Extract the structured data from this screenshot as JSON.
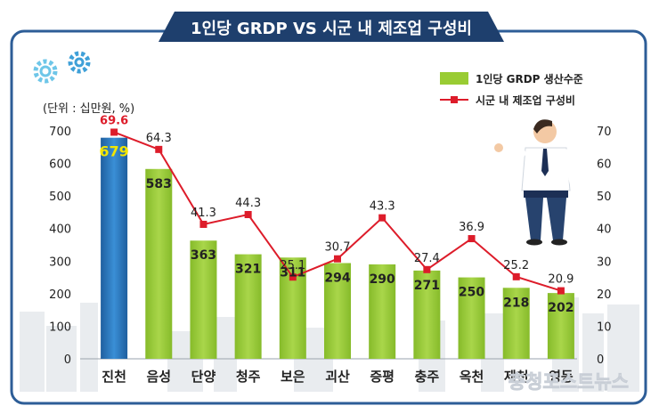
{
  "chart_data": {
    "type": "bar",
    "title": "1인당 GRDP VS 시군 내 제조업 구성비",
    "unit_note": "(단위 : 십만원, %)",
    "categories": [
      "진천",
      "음성",
      "단양",
      "청주",
      "보은",
      "괴산",
      "증평",
      "충주",
      "옥천",
      "제천",
      "영동"
    ],
    "series": [
      {
        "name": "1인당 GRDP 생산수준",
        "type": "bar",
        "axis": "left",
        "values": [
          679,
          583,
          363,
          321,
          311,
          294,
          290,
          271,
          250,
          218,
          202
        ],
        "highlight_index": 0,
        "color": "#99cc33",
        "highlight_color": "#2f7fc1"
      },
      {
        "name": "시군 내 제조업 구성비",
        "type": "line",
        "axis": "right",
        "values": [
          69.6,
          64.3,
          41.3,
          44.3,
          25.1,
          30.7,
          43.3,
          27.4,
          36.9,
          25.2,
          20.9
        ],
        "color": "#dd1c2a"
      }
    ],
    "y_left": {
      "min": 0,
      "max": 700,
      "ticks": [
        0,
        100,
        200,
        300,
        400,
        500,
        600,
        700
      ]
    },
    "y_right": {
      "min": 0,
      "max": 70,
      "ticks": [
        0,
        10,
        20,
        30,
        40,
        50,
        60,
        70
      ]
    },
    "legend_position": "top-right",
    "colors": {
      "header_bg": "#1e3f6d",
      "frame": "#2d5d97",
      "first_bar_label": "#f2e600",
      "first_point_label": "#dd1c2a"
    }
  },
  "watermark": "충청포스트뉴스"
}
